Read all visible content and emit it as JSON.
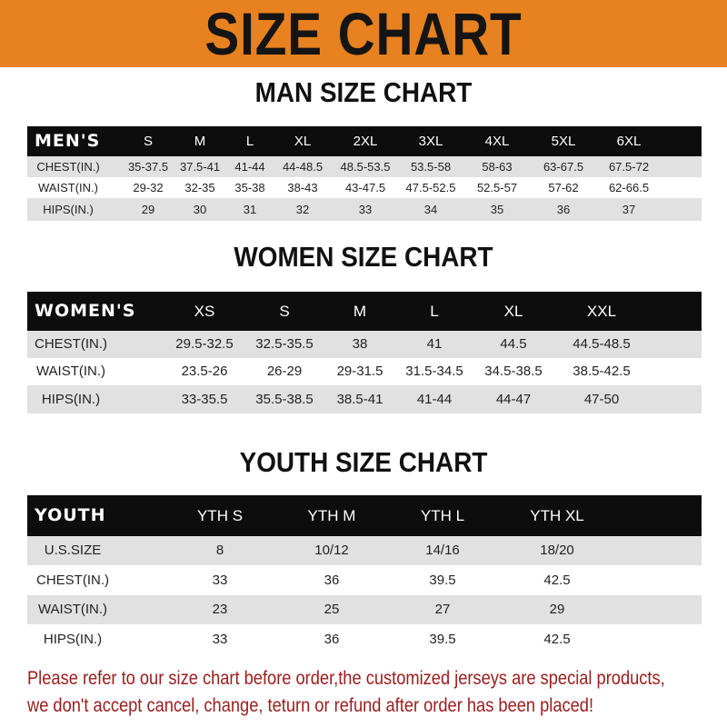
{
  "banner": {
    "title": "SIZE CHART",
    "color": "#e8811f"
  },
  "men": {
    "title": "MAN SIZE CHART",
    "header": [
      "MEN'S",
      "S",
      "M",
      "L",
      "XL",
      "2XL",
      "3XL",
      "4XL",
      "5XL",
      "6XL"
    ],
    "rows": [
      [
        "CHEST(IN.)",
        "35-37.5",
        "37.5-41",
        "41-44",
        "44-48.5",
        "48.5-53.5",
        "53.5-58",
        "58-63",
        "63-67.5",
        "67.5-72"
      ],
      [
        "WAIST(IN.)",
        "29-32",
        "32-35",
        "35-38",
        "38-43",
        "43-47.5",
        "47.5-52.5",
        "52.5-57",
        "57-62",
        "62-66.5"
      ],
      [
        "HIPS(IN.)",
        "29",
        "30",
        "31",
        "32",
        "33",
        "34",
        "35",
        "36",
        "37"
      ]
    ]
  },
  "women": {
    "title": "WOMEN SIZE CHART",
    "header": [
      "WOMEN'S",
      "XS",
      "S",
      "M",
      "L",
      "XL",
      "XXL"
    ],
    "rows": [
      [
        "CHEST(IN.)",
        "29.5-32.5",
        "32.5-35.5",
        "38",
        "41",
        "44.5",
        "44.5-48.5"
      ],
      [
        "WAIST(IN.)",
        "23.5-26",
        "26-29",
        "29-31.5",
        "31.5-34.5",
        "34.5-38.5",
        "38.5-42.5"
      ],
      [
        "HIPS(IN.)",
        "33-35.5",
        "35.5-38.5",
        "38.5-41",
        "41-44",
        "44-47",
        "47-50"
      ]
    ]
  },
  "youth": {
    "title": "YOUTH SIZE CHART",
    "header": [
      "YOUTH",
      "YTH S",
      "YTH M",
      "YTH L",
      "YTH XL"
    ],
    "rows": [
      [
        "U.S.SIZE",
        "8",
        "10/12",
        "14/16",
        "18/20"
      ],
      [
        "CHEST(IN.)",
        "33",
        "36",
        "39.5",
        "42.5"
      ],
      [
        "WAIST(IN.)",
        "23",
        "25",
        "27",
        "29"
      ],
      [
        "HIPS(IN.)",
        "33",
        "36",
        "39.5",
        "42.5"
      ]
    ]
  },
  "note": {
    "line1": "Please refer to our size chart before order,the customized jerseys are special products,",
    "line2": "we don't accept cancel, change, teturn or refund after order has been placed!",
    "color": "#9c1c1c"
  }
}
